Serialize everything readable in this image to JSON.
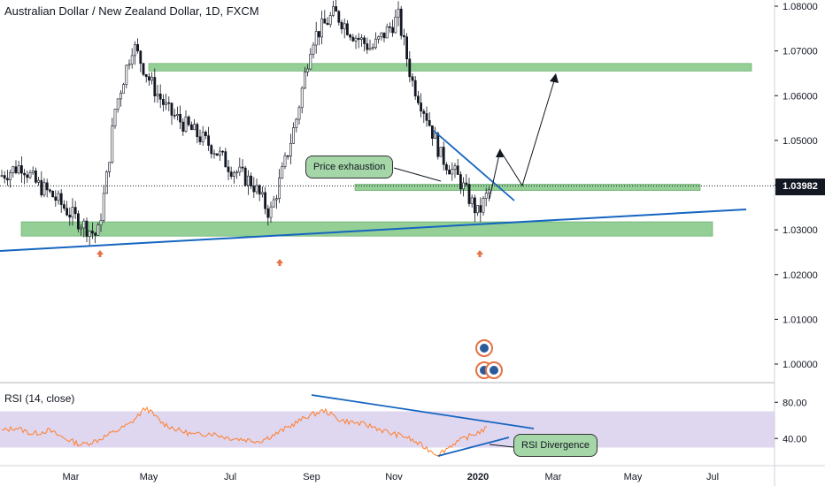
{
  "title": "Australian Dollar / New Zealand Dollar, 1D, FXCM",
  "chart_data": {
    "type": "candlestick",
    "price_axis": {
      "ticks": [
        "1.08000",
        "1.07000",
        "1.06000",
        "1.05000",
        "1.04000",
        "1.03000",
        "1.02000",
        "1.01000",
        "1.00000"
      ],
      "ylim": [
        0.9955,
        1.0825
      ]
    },
    "current_price": "1.03982",
    "x_ticks": [
      "Mar",
      "May",
      "Jul",
      "Sep",
      "Nov",
      "2020",
      "Mar",
      "May",
      "Jul"
    ],
    "price_path": [
      {
        "date": "Jan",
        "close": 1.042
      },
      {
        "date": "Jan-m",
        "close": 1.0445
      },
      {
        "date": "Feb",
        "close": 1.0405
      },
      {
        "date": "Feb-m",
        "close": 1.0375
      },
      {
        "date": "Mar",
        "close": 1.0335
      },
      {
        "date": "Mar-m",
        "close": 1.0285
      },
      {
        "date": "Mar-e",
        "close": 1.041
      },
      {
        "date": "Apr",
        "close": 1.057
      },
      {
        "date": "Apr-m",
        "close": 1.0715
      },
      {
        "date": "May",
        "close": 1.063
      },
      {
        "date": "May-m",
        "close": 1.0565
      },
      {
        "date": "Jun",
        "close": 1.0525
      },
      {
        "date": "Jun-m",
        "close": 1.0485
      },
      {
        "date": "Jul",
        "close": 1.044
      },
      {
        "date": "Jul-m",
        "close": 1.0405
      },
      {
        "date": "Aug",
        "close": 1.0335
      },
      {
        "date": "Aug-m",
        "close": 1.0435
      },
      {
        "date": "Aug-e",
        "close": 1.055
      },
      {
        "date": "Sep",
        "close": 1.0725
      },
      {
        "date": "Sep-m",
        "close": 1.0785
      },
      {
        "date": "Oct",
        "close": 1.0735
      },
      {
        "date": "Oct-m",
        "close": 1.0705
      },
      {
        "date": "Oct-e",
        "close": 1.0775
      },
      {
        "date": "Nov",
        "close": 1.0635
      },
      {
        "date": "Nov-m",
        "close": 1.0555
      },
      {
        "date": "Dec",
        "close": 1.0465
      },
      {
        "date": "Dec-m",
        "close": 1.0415
      },
      {
        "date": "2020",
        "close": 1.0335
      },
      {
        "date": "Jan-e",
        "close": 1.0398
      }
    ],
    "zones": [
      {
        "from": "Apr",
        "to": "Jul",
        "low": 1.0655,
        "high": 1.0672
      },
      {
        "from": "Sep",
        "to": "Jun",
        "low": 1.0388,
        "high": 1.0402
      },
      {
        "from": "Jan",
        "to": "Jun",
        "low": 1.0286,
        "high": 1.0318
      }
    ],
    "rsi": {
      "label": "RSI (14, close)",
      "ticks": [
        "80.00",
        "40.00"
      ],
      "band": [
        30,
        70
      ],
      "values": [
        48,
        52,
        45,
        49,
        40,
        33,
        38,
        47,
        56,
        74,
        57,
        49,
        44,
        46,
        41,
        39,
        37,
        45,
        55,
        65,
        71,
        60,
        57,
        53,
        46,
        42,
        32,
        22,
        35,
        43,
        51
      ]
    },
    "annotations": [
      "Price exhaustion",
      "RSI Divergence"
    ],
    "colors": {
      "zone": "#81c784",
      "trendline": "#1565c0",
      "rsi_line": "#ff7f2a",
      "rsi_band": "#d1c4e9",
      "arrow_up": "#e57245",
      "candles": "#131722"
    }
  }
}
